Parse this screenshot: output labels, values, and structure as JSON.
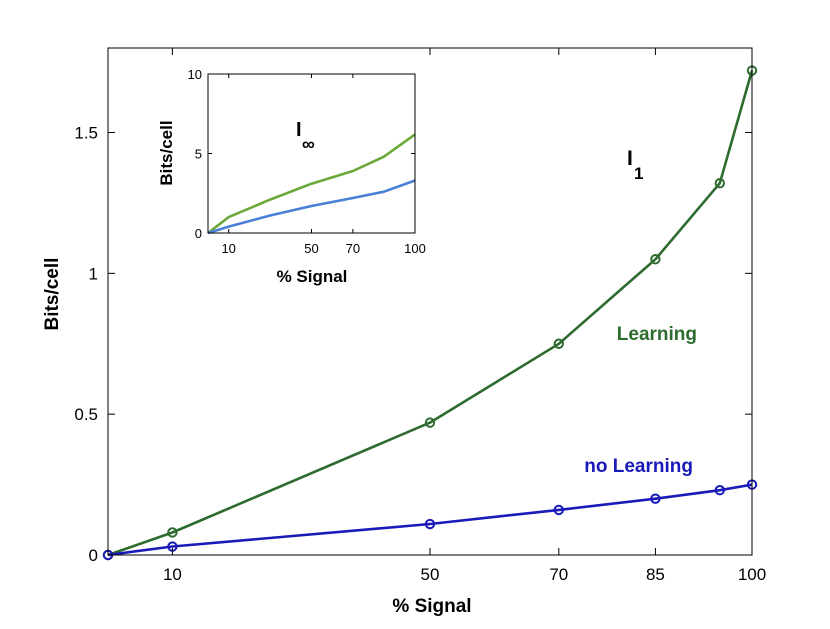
{
  "chart_data": [
    {
      "type": "line",
      "xlabel": "% Signal",
      "ylabel": "Bits/cell",
      "xlim": [
        0,
        100
      ],
      "ylim": [
        0,
        1.8
      ],
      "xticks": [
        10,
        50,
        70,
        85,
        100
      ],
      "yticks": [
        0,
        0.5,
        1,
        1.5
      ],
      "ytick_labels": [
        "0",
        "0.5",
        "1",
        "1.5"
      ],
      "annotation": {
        "main": "I",
        "sub": "1"
      },
      "marker": "circle",
      "grid": false,
      "series": [
        {
          "name": "Learning",
          "color": "#2e6b2e",
          "x": [
            0,
            10,
            50,
            70,
            85,
            95,
            100
          ],
          "y": [
            0,
            0.08,
            0.47,
            0.75,
            1.05,
            1.32,
            1.72
          ]
        },
        {
          "name": "no Learning",
          "color": "#1a1ab8",
          "x": [
            0,
            10,
            50,
            70,
            85,
            95,
            100
          ],
          "y": [
            0,
            0.03,
            0.11,
            0.16,
            0.2,
            0.23,
            0.25
          ]
        }
      ]
    },
    {
      "type": "line",
      "xlabel": "% Signal",
      "ylabel": "Bits/cell",
      "xlim": [
        0,
        100
      ],
      "ylim": [
        0,
        10
      ],
      "xticks": [
        10,
        50,
        70,
        100
      ],
      "yticks": [
        0,
        5,
        10
      ],
      "annotation": {
        "main": "I",
        "sub": "∞"
      },
      "grid": false,
      "series": [
        {
          "color": "#6aa83a",
          "x": [
            0,
            10,
            30,
            50,
            70,
            85,
            100
          ],
          "y": [
            0,
            1.0,
            2.1,
            3.1,
            3.9,
            4.8,
            6.2
          ]
        },
        {
          "color": "#4a7fd8",
          "x": [
            0,
            10,
            30,
            50,
            70,
            85,
            100
          ],
          "y": [
            0,
            0.4,
            1.1,
            1.7,
            2.2,
            2.6,
            3.3
          ]
        }
      ]
    }
  ]
}
